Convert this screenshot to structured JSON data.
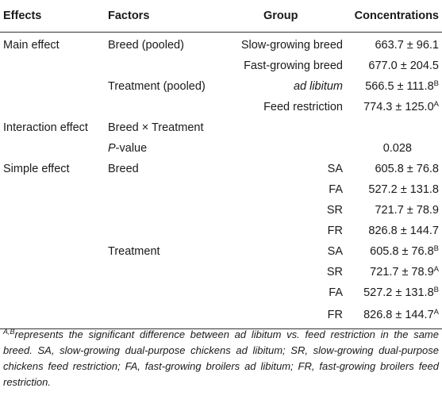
{
  "headers": [
    "Effects",
    "Factors",
    "Group",
    "Concentrations"
  ],
  "rows": [
    {
      "effect": "Main effect",
      "factor": "Breed (pooled)",
      "group": "Slow-growing breed",
      "value": "663.7 ± 96.1",
      "sup": ""
    },
    {
      "effect": "",
      "factor": "",
      "group": "Fast-growing breed",
      "value": "677.0 ± 204.5",
      "sup": ""
    },
    {
      "effect": "",
      "factor": "Treatment (pooled)",
      "group": "ad libitum",
      "value": "566.5 ± 111.8",
      "sup": "B"
    },
    {
      "effect": "",
      "factor": "",
      "group": "Feed restriction",
      "value": "774.3 ± 125.0",
      "sup": "A"
    },
    {
      "effect": "Interaction effect",
      "factor": "Breed × Treatment",
      "group": "",
      "value": "",
      "sup": ""
    },
    {
      "effect": "",
      "factor_italic": "P",
      "factor": "-value",
      "group": "",
      "value": "0.028",
      "sup": ""
    },
    {
      "effect": "Simple effect",
      "factor": "Breed",
      "group": "SA",
      "value": "605.8 ± 76.8",
      "sup": ""
    },
    {
      "effect": "",
      "factor": "",
      "group": "FA",
      "value": "527.2 ± 131.8",
      "sup": ""
    },
    {
      "effect": "",
      "factor": "",
      "group": "SR",
      "value": "721.7 ± 78.9",
      "sup": ""
    },
    {
      "effect": "",
      "factor": "",
      "group": "FR",
      "value": "826.8 ± 144.7",
      "sup": ""
    },
    {
      "effect": "",
      "factor": "Treatment",
      "group": "SA",
      "value": "605.8 ± 76.8",
      "sup": "B"
    },
    {
      "effect": "",
      "factor": "",
      "group": "SR",
      "value": "721.7 ± 78.9",
      "sup": "A"
    },
    {
      "effect": "",
      "factor": "",
      "group": "FA",
      "value": "527.2 ± 131.8",
      "sup": "B"
    },
    {
      "effect": "",
      "factor": "",
      "group": "FR",
      "value": "826.8 ± 144.7",
      "sup": "A"
    }
  ],
  "footnote": {
    "sup": "A,B",
    "text": "represents the significant difference between ad libitum vs. feed restriction in the same breed. SA, slow-growing dual-purpose chickens ad libitum; SR, slow-growing dual-purpose chickens feed restriction; FA, fast-growing broilers ad libitum; FR, fast-growing broilers feed restriction."
  }
}
